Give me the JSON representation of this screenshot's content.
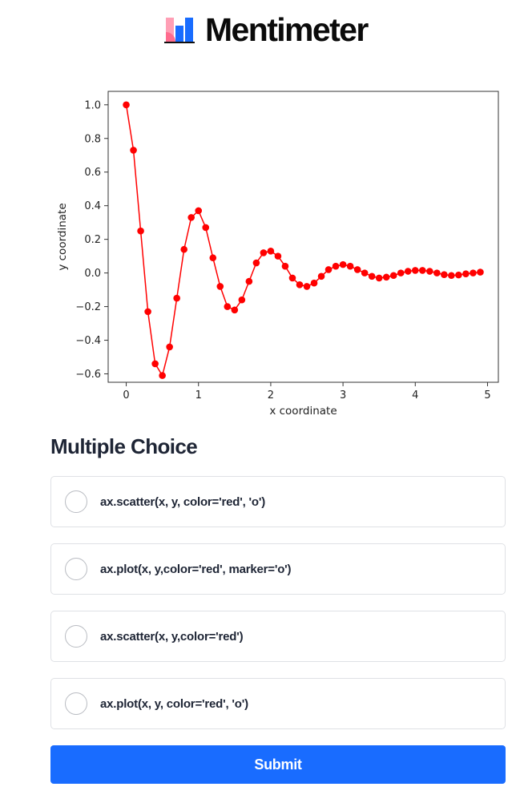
{
  "brand": {
    "name": "Mentimeter",
    "logo_icon": "mentimeter-logo-icon"
  },
  "chart_data": {
    "type": "line",
    "marker": "circle",
    "xlabel": "x coordinate",
    "ylabel": "y coordinate",
    "xlim": [
      -0.25,
      5.15
    ],
    "ylim": [
      -0.65,
      1.08
    ],
    "xticks": [
      0,
      1,
      2,
      3,
      4,
      5
    ],
    "xtick_labels": [
      "0",
      "1",
      "2",
      "3",
      "4",
      "5"
    ],
    "yticks": [
      1.0,
      0.8,
      0.6,
      0.4,
      0.2,
      0.0,
      -0.2,
      -0.4,
      -0.6
    ],
    "ytick_labels": [
      "1.0",
      "0.8",
      "0.6",
      "0.4",
      "0.2",
      "0.0",
      "−0.2",
      "−0.4",
      "−0.6"
    ],
    "grid": false,
    "color": "#ff0000",
    "series": [
      {
        "x": [
          0,
          0.1,
          0.2,
          0.3,
          0.4,
          0.5,
          0.6,
          0.7,
          0.8,
          0.9,
          1.0,
          1.1,
          1.2,
          1.3,
          1.4,
          1.5,
          1.6,
          1.7,
          1.8,
          1.9,
          2.0,
          2.1,
          2.2,
          2.3,
          2.4,
          2.5,
          2.6,
          2.7,
          2.8,
          2.9,
          3.0,
          3.1,
          3.2,
          3.3,
          3.4,
          3.5,
          3.6,
          3.7,
          3.8,
          3.9,
          4.0,
          4.1,
          4.2,
          4.3,
          4.4,
          4.5,
          4.6,
          4.7,
          4.8,
          4.9
        ],
        "y": [
          1.0,
          0.73,
          0.25,
          -0.23,
          -0.54,
          -0.61,
          -0.44,
          -0.15,
          0.14,
          0.33,
          0.37,
          0.27,
          0.09,
          -0.08,
          -0.2,
          -0.22,
          -0.16,
          -0.05,
          0.06,
          0.12,
          0.13,
          0.1,
          0.04,
          -0.03,
          -0.07,
          -0.08,
          -0.06,
          -0.02,
          0.02,
          0.04,
          0.05,
          0.04,
          0.02,
          0.0,
          -0.02,
          -0.03,
          -0.025,
          -0.015,
          0.0,
          0.01,
          0.015,
          0.015,
          0.01,
          0.0,
          -0.01,
          -0.015,
          -0.012,
          -0.005,
          0.0,
          0.005
        ]
      }
    ]
  },
  "question": {
    "type_label": "Multiple Choice",
    "options": [
      {
        "label": "ax.scatter(x, y, color='red', 'o')"
      },
      {
        "label": "ax.plot(x, y,color='red', marker='o')"
      },
      {
        "label": "ax.scatter(x, y,color='red')"
      },
      {
        "label": "ax.plot(x, y, color='red', 'o')"
      }
    ],
    "submit_label": "Submit"
  },
  "colors": {
    "accent": "#196cff",
    "plot_series": "#ff0000",
    "option_border": "#dfe1e5"
  }
}
